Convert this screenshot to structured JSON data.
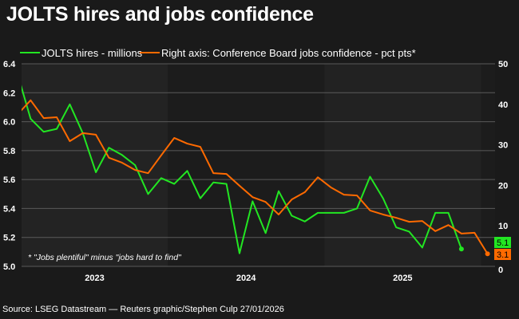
{
  "chart_data": {
    "type": "line",
    "title": "JOLTS hires and jobs confidence",
    "source": "Source: LSEG Datastream — Reuters graphic/Stephen Culp 27/01/2026",
    "note": "* \"Jobs plentiful\" minus \"jobs hard to find\"",
    "x_tick_labels": [
      "2023",
      "2024",
      "2025"
    ],
    "x_range": [
      "2023-01",
      "2026-01"
    ],
    "left_axis": {
      "range": [
        5.0,
        6.4
      ],
      "ticks": [
        "5.0",
        "5.2",
        "5.4",
        "5.6",
        "5.8",
        "6.0",
        "6.2",
        "6.4"
      ]
    },
    "right_axis": {
      "range": [
        0,
        50
      ],
      "ticks": [
        "0",
        "10",
        "20",
        "30",
        "40",
        "50"
      ]
    },
    "grid": true,
    "legend_placement": "top",
    "series": [
      {
        "name": "JOLTS hires - millions",
        "axis": "left",
        "color": "#22e622",
        "start": "2023-01",
        "end_label": "5.1",
        "values": [
          6.33,
          6.02,
          5.93,
          5.95,
          6.12,
          5.92,
          5.65,
          5.82,
          5.77,
          5.7,
          5.5,
          5.61,
          5.57,
          5.66,
          5.47,
          5.58,
          5.57,
          5.09,
          5.45,
          5.23,
          5.52,
          5.35,
          5.31,
          5.37,
          5.37,
          5.37,
          5.4,
          5.62,
          5.47,
          5.27,
          5.24,
          5.13,
          5.37,
          5.37,
          5.12
        ]
      },
      {
        "name": "Right axis: Conference Board jobs confidence - pct pts*",
        "axis": "right",
        "color": "#ff6a00",
        "start": "2023-01",
        "end_label": "3.1",
        "values": [
          37.5,
          41.0,
          36.6,
          36.8,
          30.9,
          32.9,
          32.5,
          26.8,
          25.6,
          23.8,
          23.0,
          27.4,
          31.7,
          30.3,
          29.5,
          23.0,
          22.8,
          19.9,
          17.1,
          15.9,
          12.8,
          16.5,
          18.3,
          22.0,
          19.5,
          17.7,
          17.5,
          13.8,
          12.8,
          12.0,
          11.0,
          11.2,
          8.7,
          10.2,
          8.1,
          8.3,
          3.1
        ]
      }
    ]
  }
}
